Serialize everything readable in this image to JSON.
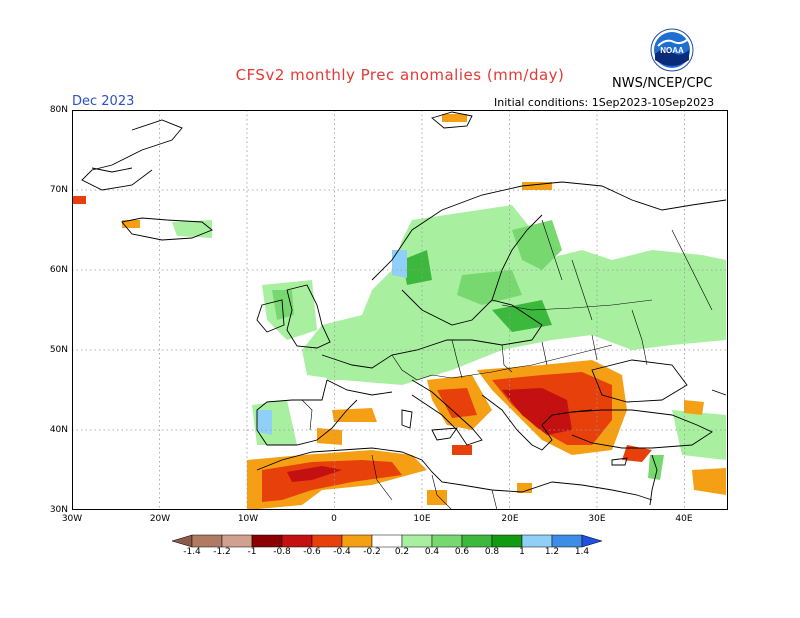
{
  "header": {
    "title": "CFSv2 monthly Prec anomalies (mm/day)",
    "month": "Dec 2023",
    "initial_conditions": "Initial conditions: 1Sep2023-10Sep2023",
    "agency": "NWS/NCEP/CPC",
    "logo_text": "NOAA"
  },
  "axes": {
    "lat_labels": [
      "80N",
      "70N",
      "60N",
      "50N",
      "40N",
      "30N"
    ],
    "lon_labels": [
      "30W",
      "20W",
      "10W",
      "0",
      "10E",
      "20E",
      "30E",
      "40E"
    ]
  },
  "colorbar": {
    "labels": [
      "-1.4",
      "-1.2",
      "-1",
      "-0.8",
      "-0.6",
      "-0.4",
      "-0.2",
      "0.2",
      "0.4",
      "0.6",
      "0.8",
      "1",
      "1.2",
      "1.4"
    ],
    "colors": [
      "#8b5a4a",
      "#b07a64",
      "#d0a090",
      "#8b0000",
      "#c41010",
      "#e8400a",
      "#f5a014",
      "#ffffff",
      "#a8f0a0",
      "#78d870",
      "#3cb83c",
      "#129a12",
      "#90d0f8",
      "#3c8ce8",
      "#2050e0"
    ]
  },
  "legend_colors": {
    "dry_light": "#f5a014",
    "dry_mid": "#e8400a",
    "dry_strong": "#c41010",
    "wet_light": "#a8f0a0",
    "wet_mid": "#78d870",
    "wet_strong": "#3cb83c",
    "wet_blue": "#90d0f8"
  }
}
